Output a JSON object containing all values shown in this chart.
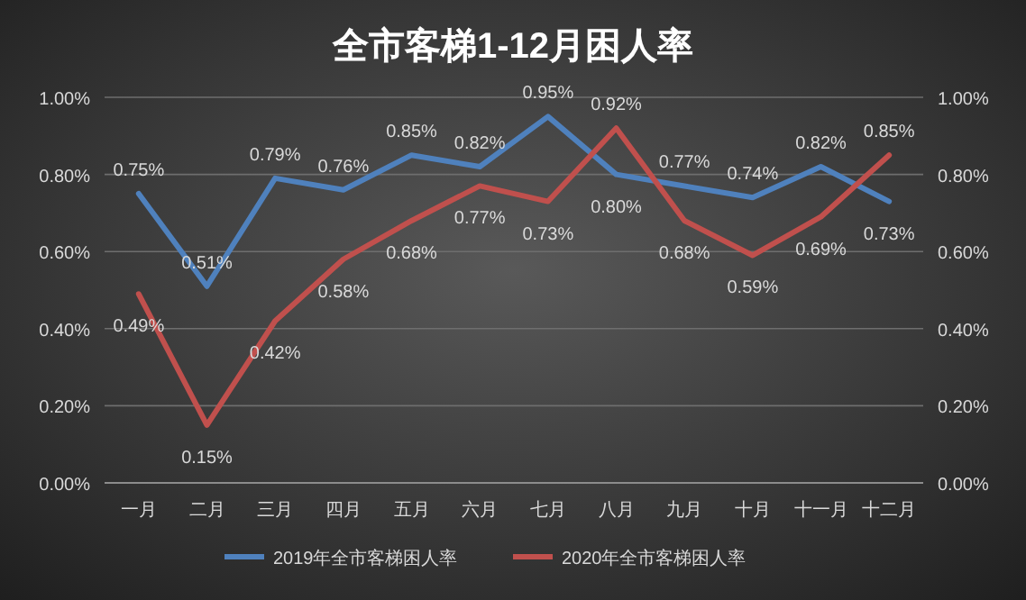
{
  "chart_data": {
    "type": "line",
    "title": "全市客梯1-12月困人率",
    "categories": [
      "一月",
      "二月",
      "三月",
      "四月",
      "五月",
      "六月",
      "七月",
      "八月",
      "九月",
      "十月",
      "十一月",
      "十二月"
    ],
    "series": [
      {
        "name": "2019年全市客梯困人率",
        "color": "#4f81bd",
        "values": [
          0.75,
          0.51,
          0.79,
          0.76,
          0.85,
          0.82,
          0.95,
          0.8,
          0.77,
          0.74,
          0.82,
          0.73
        ],
        "value_labels": [
          "0.75%",
          "0.51%",
          "0.79%",
          "0.76%",
          "0.85%",
          "0.82%",
          "0.95%",
          "0.80%",
          "0.77%",
          "0.74%",
          "0.82%",
          "0.73%"
        ]
      },
      {
        "name": "2020年全市客梯困人率",
        "color": "#c0504d",
        "values": [
          0.49,
          0.15,
          0.42,
          0.58,
          0.68,
          0.77,
          0.73,
          0.92,
          0.68,
          0.59,
          0.69,
          0.85
        ],
        "value_labels": [
          "0.49%",
          "0.15%",
          "0.42%",
          "0.58%",
          "0.68%",
          "0.77%",
          "0.73%",
          "0.92%",
          "0.68%",
          "0.59%",
          "0.69%",
          "0.85%"
        ]
      }
    ],
    "ylim": [
      0,
      1
    ],
    "yticks": [
      {
        "value": 0,
        "label": "0.00%"
      },
      {
        "value": 0.2,
        "label": "0.20%"
      },
      {
        "value": 0.4,
        "label": "0.40%"
      },
      {
        "value": 0.6,
        "label": "0.60%"
      },
      {
        "value": 0.8,
        "label": "0.80%"
      },
      {
        "value": 1,
        "label": "1.00%"
      }
    ],
    "y2lim": [
      0,
      1
    ],
    "y2ticks": [
      {
        "value": 0,
        "label": "0.00%"
      },
      {
        "value": 0.2,
        "label": "0.20%"
      },
      {
        "value": 0.4,
        "label": "0.40%"
      },
      {
        "value": 0.6,
        "label": "0.60%"
      },
      {
        "value": 0.8,
        "label": "0.80%"
      },
      {
        "value": 1,
        "label": "1.00%"
      }
    ],
    "grid": "y",
    "legend": "bottom",
    "marker": "none",
    "line_style": "solid"
  }
}
